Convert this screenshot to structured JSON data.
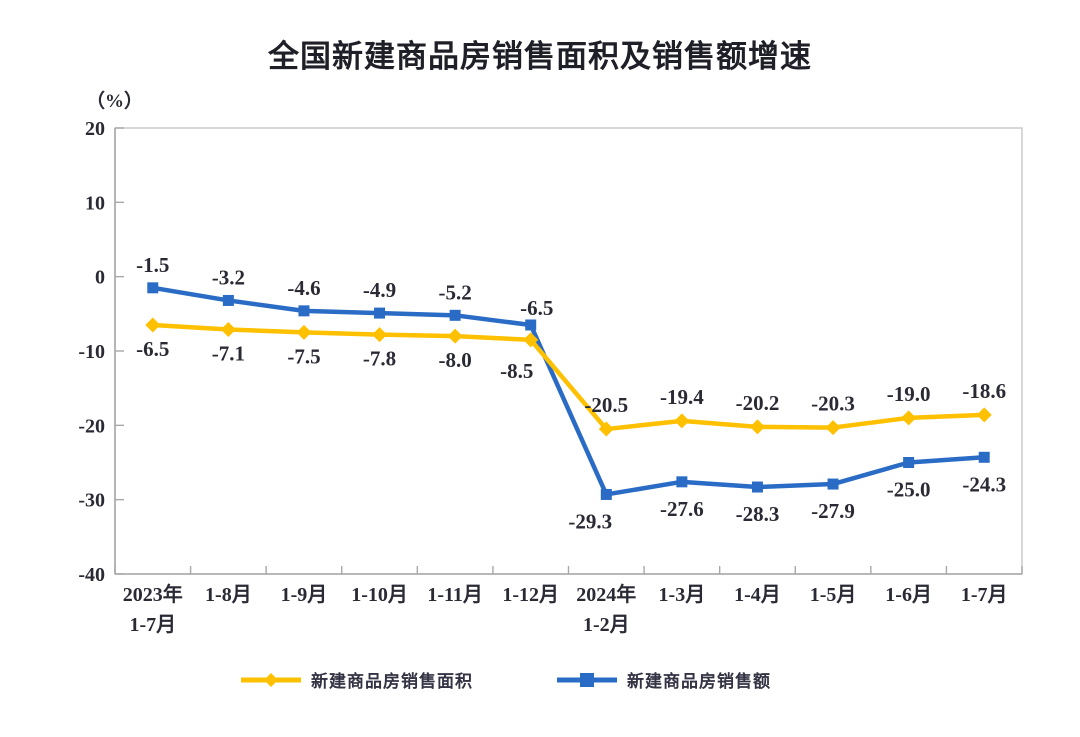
{
  "title": "全国新建商品房销售面积及销售额增速",
  "unit_label": "（%）",
  "chart_data": {
    "type": "line",
    "title": "全国新建商品房销售面积及销售额增速",
    "xlabel": "",
    "ylabel": "（%）",
    "ylim": [
      -40,
      20
    ],
    "yticks": [
      20,
      10,
      0,
      -10,
      -20,
      -30,
      -40
    ],
    "grid": false,
    "legend_position": "bottom",
    "data_labels": true,
    "categories": [
      "2023年\n1-7月",
      "1-8月",
      "1-9月",
      "1-10月",
      "1-11月",
      "1-12月",
      "2024年\n1-2月",
      "1-3月",
      "1-4月",
      "1-5月",
      "1-6月",
      "1-7月"
    ],
    "series": [
      {
        "name": "新建商品房销售面积",
        "color": "#FFC000",
        "marker": "diamond",
        "values": [
          -6.5,
          -7.1,
          -7.5,
          -7.8,
          -8.0,
          -8.5,
          -20.5,
          -19.4,
          -20.2,
          -20.3,
          -19.0,
          -18.6
        ]
      },
      {
        "name": "新建商品房销售额",
        "color": "#2A6CC5",
        "marker": "square",
        "values": [
          -1.5,
          -3.2,
          -4.6,
          -4.9,
          -5.2,
          -6.5,
          -29.3,
          -27.6,
          -28.3,
          -27.9,
          -25.0,
          -24.3
        ]
      }
    ]
  },
  "legend": {
    "items": [
      {
        "label": "新建商品房销售面积"
      },
      {
        "label": "新建商品房销售额"
      }
    ]
  },
  "colors": {
    "plot_border": "#c6c6c6",
    "axis_line": "#a8a8a8",
    "label_text": "#2a2a35"
  }
}
